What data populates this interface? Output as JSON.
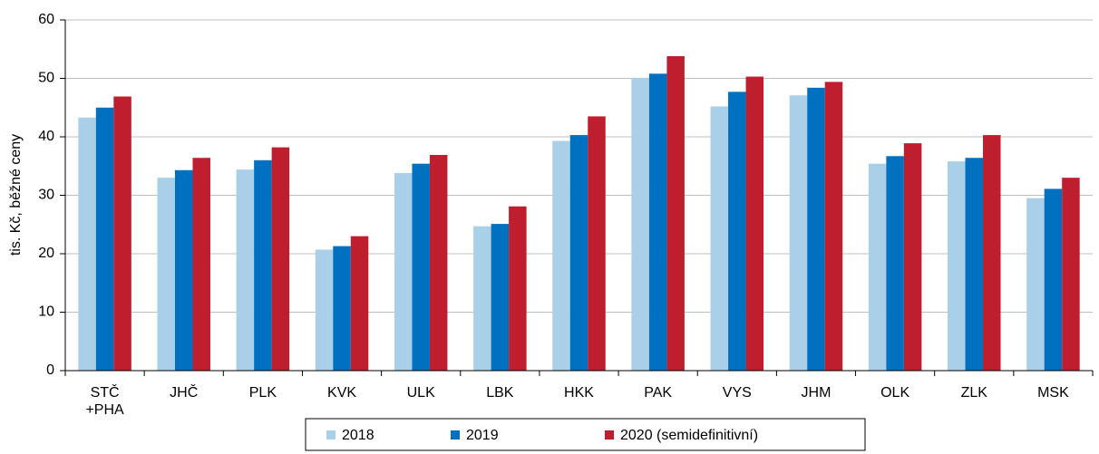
{
  "chart_data": {
    "type": "bar",
    "y_label": "tis. Kč, běžné ceny",
    "categories": [
      "STČ\n+PHA",
      "JHČ",
      "PLK",
      "KVK",
      "ULK",
      "LBK",
      "HKK",
      "PAK",
      "VYS",
      "JHM",
      "OLK",
      "ZLK",
      "MSK"
    ],
    "series": [
      {
        "name": "2018",
        "color": "#a9cfe9",
        "values": [
          43.3,
          33.0,
          34.4,
          20.7,
          33.8,
          24.7,
          39.3,
          50.1,
          45.2,
          47.1,
          35.4,
          35.8,
          29.5
        ]
      },
      {
        "name": "2019",
        "color": "#0070c0",
        "values": [
          45.0,
          34.3,
          36.0,
          21.3,
          35.4,
          25.1,
          40.3,
          50.8,
          47.7,
          48.4,
          36.7,
          36.4,
          31.1
        ]
      },
      {
        "name": "2020 (semidefinitivní)",
        "color": "#be1e2d",
        "values": [
          46.9,
          36.4,
          38.2,
          23.0,
          36.9,
          28.1,
          43.5,
          53.8,
          50.3,
          49.4,
          38.9,
          40.3,
          33.0
        ]
      }
    ],
    "ylim": [
      0,
      60
    ],
    "yticks": [
      0,
      10,
      20,
      30,
      40,
      50,
      60
    ],
    "grid": true,
    "legend": "bottom"
  }
}
